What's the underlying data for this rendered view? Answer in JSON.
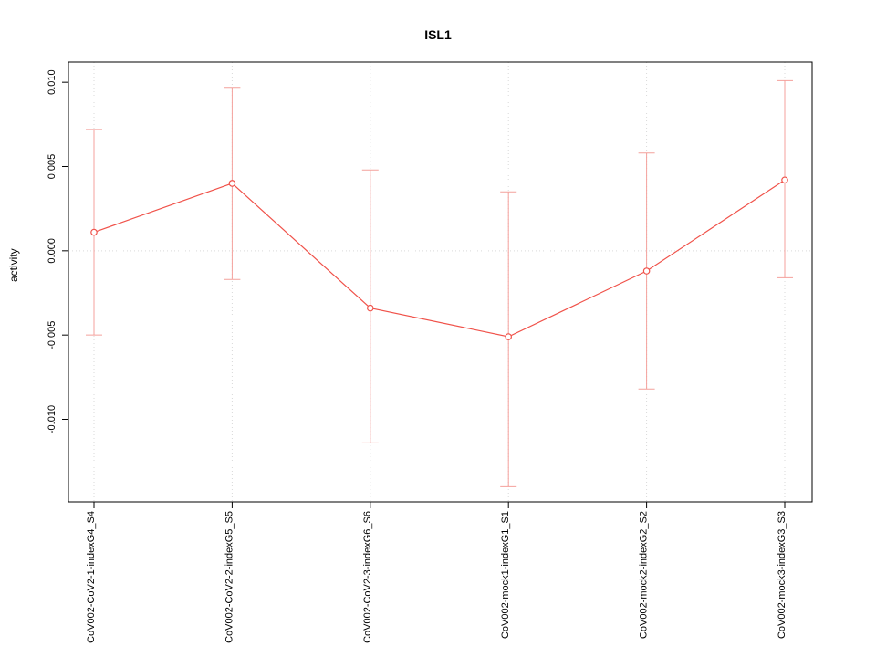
{
  "title": "ISL1",
  "ylabel": "activity",
  "colors": {
    "line": "#f0524a",
    "point_fill": "#ffffff",
    "errorbar": "#f4a19c",
    "grid": "#d9d9d9",
    "axis": "#000000"
  },
  "chart_data": {
    "type": "line",
    "title": "ISL1",
    "xlabel": "",
    "ylabel": "activity",
    "legend": "none",
    "grid": "dotted vertical gridline at each category; dotted horizontal line at y=0",
    "categories": [
      "CoV002-CoV2-1-indexG4_S4",
      "CoV002-CoV2-2-indexG5_S5",
      "CoV002-CoV2-3-indexG6_S6",
      "CoV002-mock1-indexG1_S1",
      "CoV002-mock2-indexG2_S2",
      "CoV002-mock3-indexG3_S3"
    ],
    "series": [
      {
        "name": "activity",
        "values": [
          0.0011,
          0.004,
          -0.0034,
          -0.0051,
          -0.0012,
          0.0042
        ],
        "upper": [
          0.0072,
          0.0097,
          0.0048,
          0.0035,
          0.0058,
          0.0101
        ],
        "lower": [
          -0.005,
          -0.0017,
          -0.0114,
          -0.014,
          -0.0082,
          -0.0016
        ]
      }
    ],
    "ylim": [
      -0.0149,
      0.0112
    ],
    "yticks": [
      {
        "value": -0.01,
        "label": "-0.010"
      },
      {
        "value": -0.005,
        "label": "-0.005"
      },
      {
        "value": 0.0,
        "label": "0.000"
      },
      {
        "value": 0.005,
        "label": "0.005"
      },
      {
        "value": 0.01,
        "label": "0.010"
      }
    ]
  }
}
